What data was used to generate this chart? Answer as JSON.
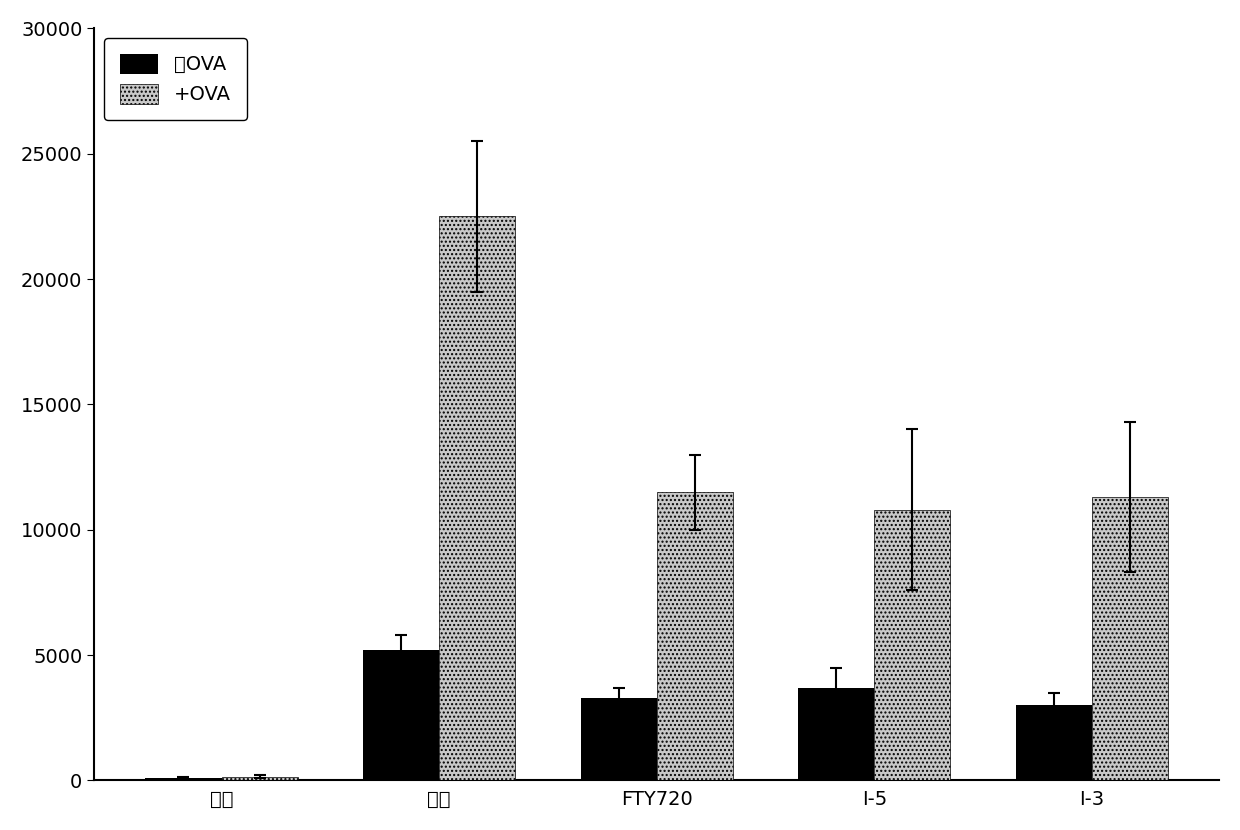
{
  "categories": [
    "正常",
    "模型",
    "FTY720",
    "I-5",
    "I-3"
  ],
  "no_ova_values": [
    100,
    5200,
    3300,
    3700,
    3000
  ],
  "ova_values": [
    150,
    22500,
    11500,
    10800,
    11300
  ],
  "no_ova_errors": [
    50,
    600,
    400,
    800,
    500
  ],
  "ova_errors": [
    50,
    3000,
    1500,
    3200,
    3000
  ],
  "legend_no_ova": "无OVA",
  "legend_ova": "+OVA",
  "ylim": [
    0,
    30000
  ],
  "yticks": [
    0,
    5000,
    10000,
    15000,
    20000,
    25000,
    30000
  ],
  "bar_width": 0.35,
  "no_ova_color": "#000000",
  "ova_color": "#c8c8c8",
  "ova_hatch": "....",
  "background_color": "#ffffff",
  "figure_bg": "#ffffff",
  "font_size_ticks": 14,
  "font_size_legend": 14,
  "legend_loc": "upper left"
}
